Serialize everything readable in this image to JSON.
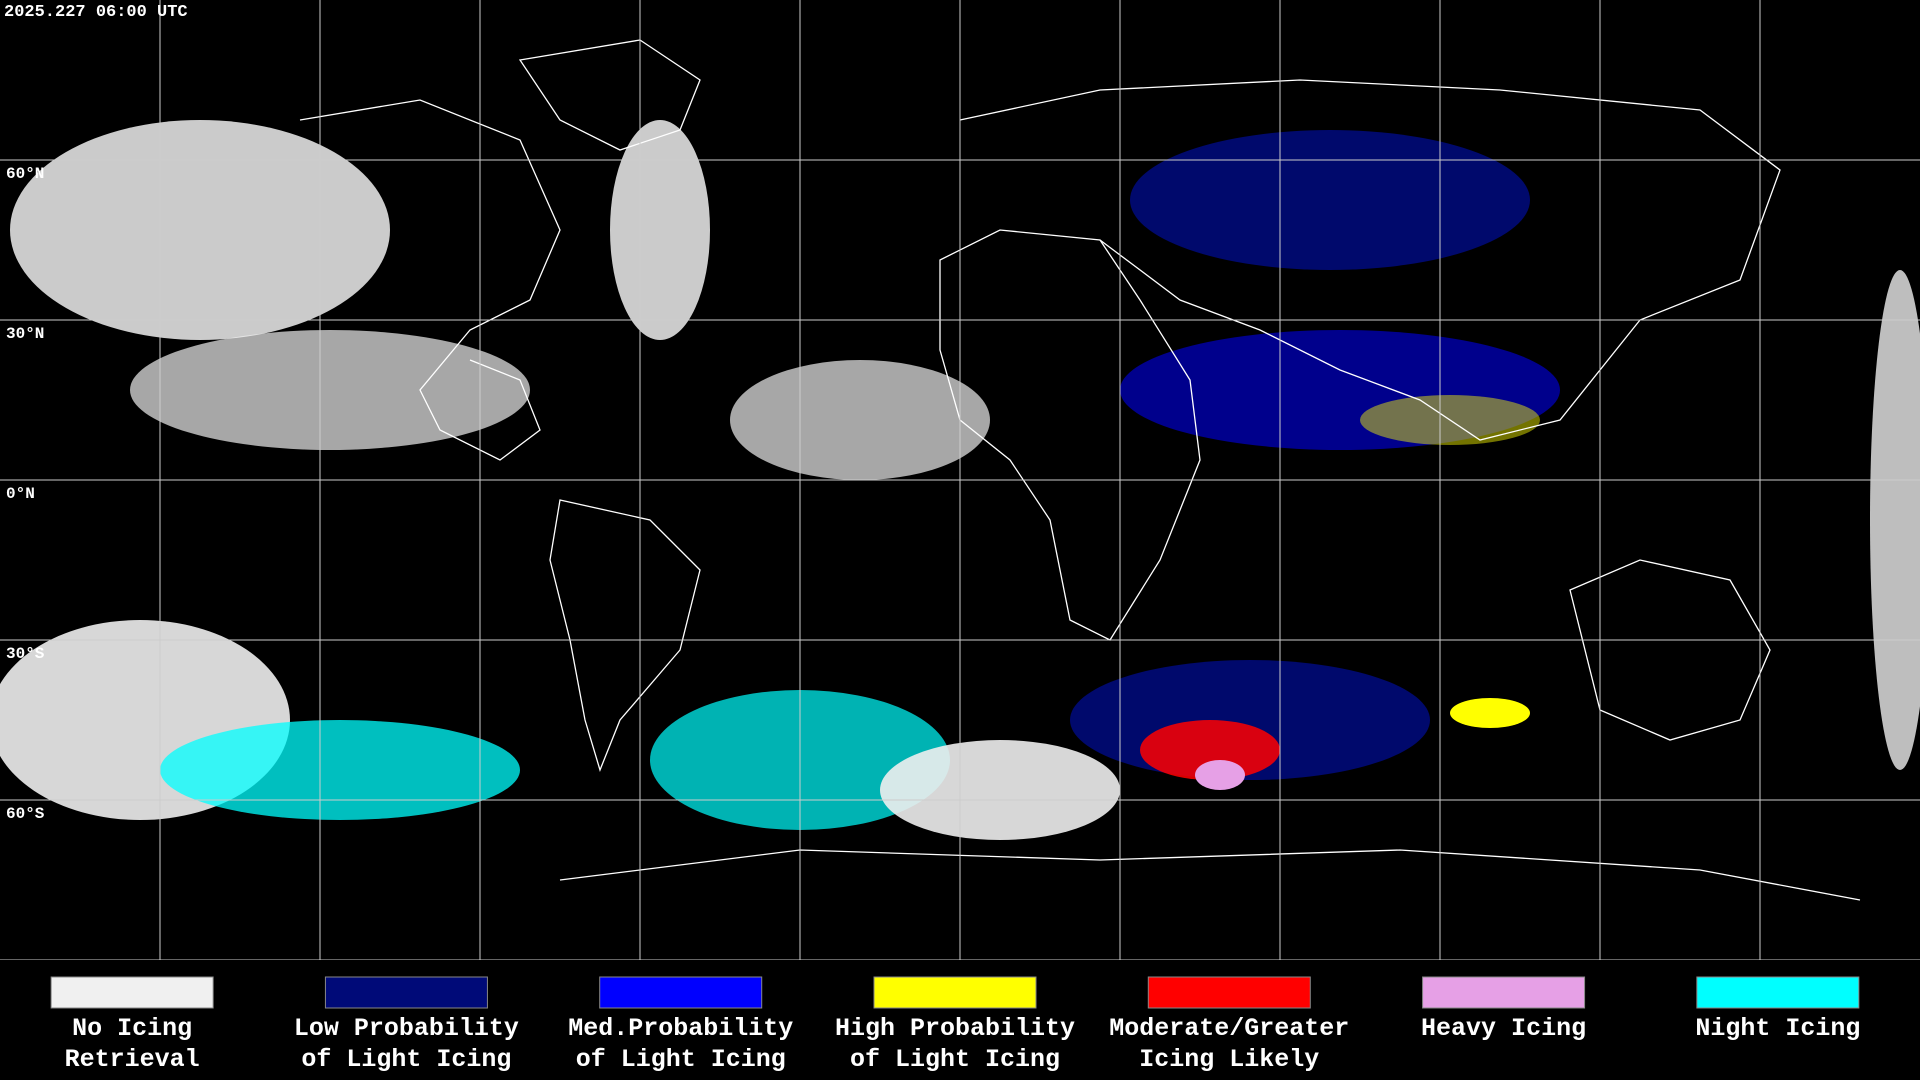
{
  "header": {
    "timestamp": "2025.227 06:00 UTC"
  },
  "latitude_labels": [
    "60°N",
    "30°N",
    "0°N",
    "30°S",
    "60°S"
  ],
  "legend": [
    {
      "lines": [
        "No Icing",
        "Retrieval"
      ],
      "color": "#f0f0f0"
    },
    {
      "lines": [
        "Low Probability",
        "of Light Icing"
      ],
      "color": "#000a78"
    },
    {
      "lines": [
        "Med.Probability",
        "of Light Icing"
      ],
      "color": "#0000ff"
    },
    {
      "lines": [
        "High Probability",
        "of Light Icing"
      ],
      "color": "#ffff00"
    },
    {
      "lines": [
        "Moderate/Greater",
        "Icing Likely"
      ],
      "color": "#ff0000"
    },
    {
      "lines": [
        "Heavy Icing"
      ],
      "color": "#e6a0e6"
    },
    {
      "lines": [
        "Night Icing"
      ],
      "color": "#00ffff"
    }
  ]
}
